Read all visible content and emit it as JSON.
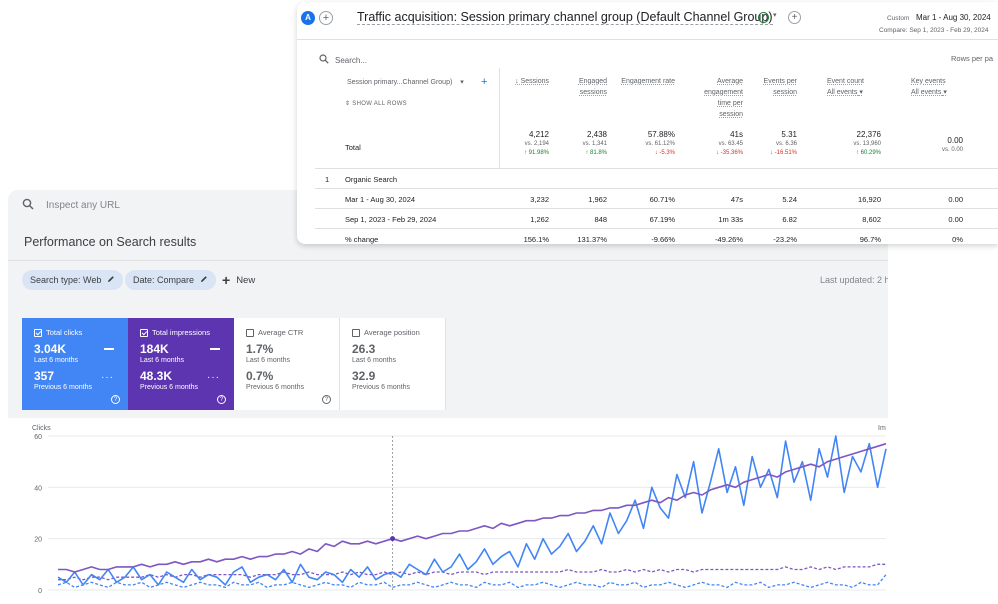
{
  "search_console": {
    "inspect_placeholder": "Inspect any URL",
    "title": "Performance on Search results",
    "filters": [
      {
        "label": "Search type: Web"
      },
      {
        "label": "Date: Compare"
      }
    ],
    "new_label": "New",
    "last_updated": "Last updated: 2 h",
    "cards": [
      {
        "label": "Total clicks",
        "value": "3.04K",
        "period": "Last 6 months",
        "value2": "357",
        "period2": "Previous 6 months",
        "checked": true
      },
      {
        "label": "Total impressions",
        "value": "184K",
        "period": "Last 6 months",
        "value2": "48.3K",
        "period2": "Previous 6 months",
        "checked": true
      },
      {
        "label": "Average CTR",
        "value": "1.7%",
        "period": "Last 6 months",
        "value2": "0.7%",
        "period2": "Previous 6 months",
        "checked": false
      },
      {
        "label": "Average position",
        "value": "26.3",
        "period": "Last 6 months",
        "value2": "32.9",
        "period2": "Previous 6 months",
        "checked": false
      }
    ],
    "colors": {
      "clicks": "#4285f4",
      "impressions": "#5e35b1"
    }
  },
  "chart_data": {
    "type": "line",
    "ylabel": "Clicks",
    "y2label": "Im",
    "ylim": [
      0,
      60
    ],
    "yticks": [
      "60",
      "40",
      "20",
      "0"
    ],
    "series": [
      {
        "name": "Total clicks",
        "style": "solid",
        "color": "#4285f4",
        "values": [
          5,
          3,
          7,
          2,
          6,
          4,
          8,
          3,
          5,
          9,
          4,
          6,
          2,
          7,
          5,
          3,
          8,
          4,
          6,
          5,
          2,
          7,
          9,
          3,
          5,
          6,
          4,
          8,
          3,
          10,
          5,
          4,
          7,
          6,
          3,
          8,
          5,
          9,
          4,
          6,
          7,
          5,
          10,
          8,
          6,
          12,
          7,
          9,
          14,
          8,
          11,
          16,
          10,
          13,
          15,
          9,
          18,
          12,
          20,
          14,
          17,
          22,
          15,
          19,
          25,
          18,
          30,
          22,
          27,
          35,
          24,
          40,
          32,
          28,
          45,
          36,
          50,
          30,
          42,
          55,
          38,
          48,
          33,
          52,
          40,
          47,
          36,
          58,
          42,
          50,
          35,
          55,
          44,
          60,
          38,
          52,
          46,
          57,
          40,
          55
        ]
      },
      {
        "name": "Total impressions",
        "style": "solid",
        "color": "#7e57c2",
        "values": [
          8,
          8,
          7,
          8,
          9,
          8,
          8,
          9,
          9,
          9,
          10,
          9,
          10,
          10,
          11,
          10,
          11,
          11,
          12,
          11,
          12,
          12,
          13,
          12,
          13,
          13,
          14,
          14,
          15,
          14,
          16,
          15,
          18,
          17,
          19,
          18,
          18,
          19,
          18,
          19,
          20,
          19,
          20,
          21,
          20,
          21,
          22,
          22,
          23,
          23,
          24,
          25,
          24,
          26,
          25,
          26,
          27,
          27,
          28,
          28,
          29,
          29,
          30,
          30,
          31,
          31,
          32,
          32,
          33,
          33,
          34,
          35,
          34,
          36,
          35,
          37,
          38,
          37,
          39,
          40,
          41,
          40,
          42,
          43,
          44,
          45,
          44,
          46,
          47,
          48,
          49,
          48,
          50,
          51,
          52,
          53,
          54,
          55,
          56,
          57
        ]
      },
      {
        "name": "Previous clicks",
        "style": "dashed",
        "color": "#4285f4",
        "values": [
          2,
          3,
          1,
          2,
          3,
          2,
          1,
          3,
          2,
          2,
          3,
          1,
          2,
          3,
          2,
          1,
          2,
          3,
          2,
          2,
          1,
          3,
          2,
          2,
          3,
          1,
          2,
          2,
          3,
          2,
          1,
          2,
          3,
          2,
          2,
          1,
          3,
          2,
          2,
          3,
          1,
          2,
          2,
          3,
          2,
          1,
          2,
          3,
          2,
          2,
          1,
          3,
          2,
          2,
          3,
          1,
          2,
          2,
          3,
          2,
          1,
          2,
          3,
          2,
          2,
          1,
          3,
          2,
          2,
          3,
          1,
          2,
          2,
          3,
          2,
          1,
          2,
          3,
          2,
          2,
          1,
          3,
          2,
          2,
          3,
          1,
          2,
          2,
          3,
          2,
          1,
          2,
          3,
          2,
          2,
          1,
          3,
          2,
          2,
          6
        ]
      },
      {
        "name": "Previous impressions",
        "style": "dashed",
        "color": "#7e57c2",
        "values": [
          4,
          4,
          5,
          4,
          5,
          5,
          4,
          5,
          5,
          5,
          5,
          6,
          5,
          6,
          5,
          6,
          6,
          5,
          6,
          6,
          6,
          6,
          6,
          5,
          6,
          6,
          6,
          7,
          6,
          6,
          7,
          6,
          6,
          6,
          7,
          6,
          7,
          6,
          6,
          7,
          6,
          7,
          6,
          7,
          6,
          7,
          7,
          6,
          7,
          7,
          7,
          6,
          7,
          7,
          7,
          7,
          7,
          7,
          7,
          7,
          7,
          8,
          7,
          7,
          7,
          8,
          7,
          7,
          8,
          7,
          8,
          7,
          8,
          7,
          8,
          8,
          7,
          8,
          8,
          8,
          8,
          8,
          8,
          8,
          8,
          8,
          8,
          9,
          8,
          8,
          9,
          8,
          9,
          8,
          9,
          9,
          9,
          9,
          10,
          10
        ]
      }
    ],
    "marker_index": 40
  },
  "ga": {
    "avatar": "A",
    "title": "Traffic acquisition: Session primary channel group (Default Channel Group)",
    "custom_label": "Custom",
    "date_range": "Mar 1 - Aug 30, 2024",
    "compare_range": "Compare: Sep 1, 2023 - Feb 29, 2024",
    "search_placeholder": "Search...",
    "rows_per_page": "Rows per pa",
    "dimension_header": "Session primary...Channel Group)",
    "show_all_rows": "SHOW ALL ROWS",
    "columns": [
      {
        "label": "↓ Sessions",
        "sub": ""
      },
      {
        "label": "Engaged sessions",
        "sub": ""
      },
      {
        "label": "Engagement rate",
        "sub": ""
      },
      {
        "label": "Average engagement time per session",
        "sub": ""
      },
      {
        "label": "Events per session",
        "sub": ""
      },
      {
        "label": "Event count",
        "sub": "All events"
      },
      {
        "label": "Key events",
        "sub": "All events"
      }
    ],
    "total_label": "Total",
    "totals": [
      {
        "main": "4,212",
        "vs": "vs. 2,194",
        "chg": "↑ 91.98%",
        "dir": "up"
      },
      {
        "main": "2,438",
        "vs": "vs. 1,341",
        "chg": "↑ 81.8%",
        "dir": "up"
      },
      {
        "main": "57.88%",
        "vs": "vs. 61.12%",
        "chg": "↓ -5.3%",
        "dir": "down"
      },
      {
        "main": "41s",
        "vs": "vs. 63.45",
        "chg": "↓ -35.36%",
        "dir": "down"
      },
      {
        "main": "5.31",
        "vs": "vs. 6.36",
        "chg": "↓ -16.51%",
        "dir": "down"
      },
      {
        "main": "22,376",
        "vs": "vs. 13,960",
        "chg": "↑ 60.29%",
        "dir": "up"
      },
      {
        "main": "0.00",
        "vs": "vs. 0.00",
        "chg": "",
        "dir": ""
      }
    ],
    "group_num": "1",
    "group_label": "Organic Search",
    "rows": [
      {
        "label": "Mar 1 - Aug 30, 2024",
        "cells": [
          "3,232",
          "1,962",
          "60.71%",
          "47s",
          "5.24",
          "16,920",
          "0.00"
        ]
      },
      {
        "label": "Sep 1, 2023 - Feb 29, 2024",
        "cells": [
          "1,262",
          "848",
          "67.19%",
          "1m 33s",
          "6.82",
          "8,602",
          "0.00"
        ]
      },
      {
        "label": "% change",
        "cells": [
          "156.1%",
          "131.37%",
          "-9.66%",
          "-49.26%",
          "-23.2%",
          "96.7%",
          "0%"
        ]
      }
    ]
  }
}
